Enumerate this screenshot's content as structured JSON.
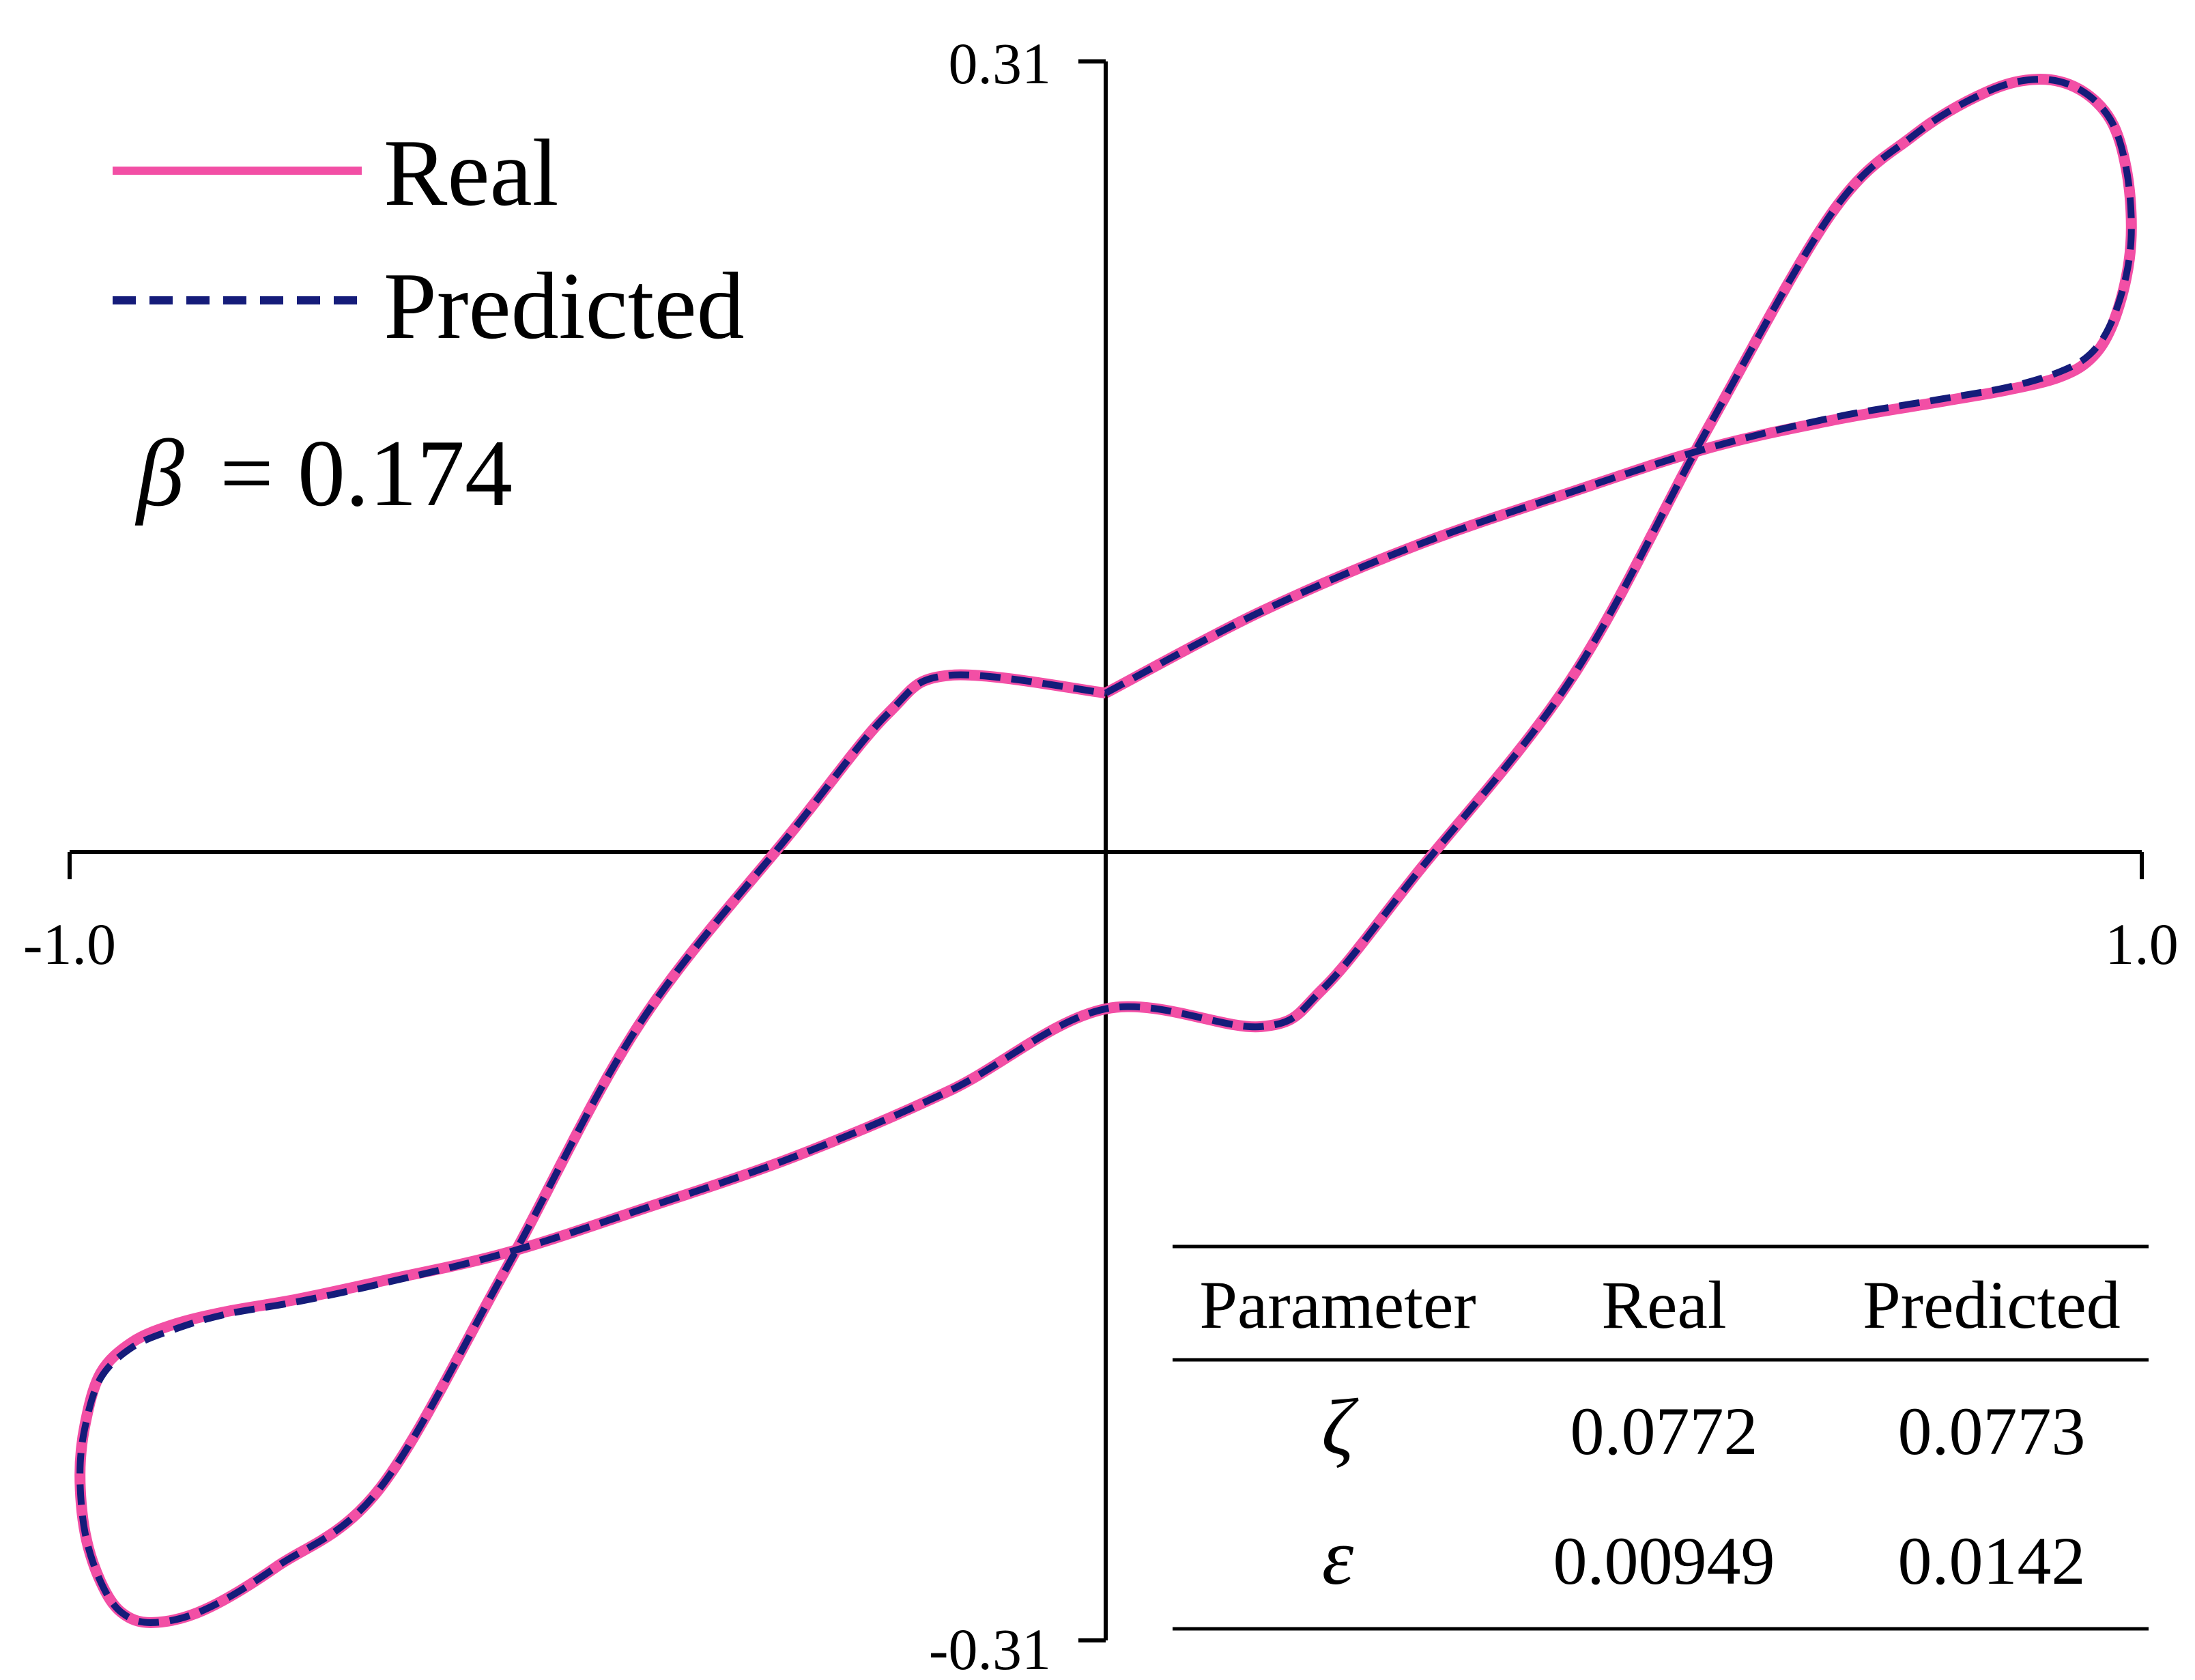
{
  "chart_data": {
    "type": "line",
    "title": "",
    "xlabel": "",
    "ylabel": "",
    "xlim": [
      -1.0,
      1.0
    ],
    "ylim": [
      -0.31,
      0.31
    ],
    "x_tick_labels": [
      "-1.0",
      "1.0"
    ],
    "y_tick_labels": [
      "0.31",
      "-0.31"
    ],
    "grid": false,
    "legend_position": "top-left",
    "annotation": {
      "symbol": "β",
      "text": "= 0.174"
    },
    "series": [
      {
        "name": "Real",
        "style": "solid",
        "color": "#f24fa5",
        "x": [
          0,
          0.15,
          0.3,
          0.45,
          0.58,
          0.7,
          0.8,
          0.87,
          0.92,
          0.95,
          0.97,
          0.985,
          0.99,
          0.985,
          0.97,
          0.94,
          0.9,
          0.85,
          0.78,
          0.7,
          0.58,
          0.45,
          0.3,
          0.21,
          0.15,
          0,
          -0.15,
          -0.3,
          -0.45,
          -0.58,
          -0.7,
          -0.78,
          -0.85,
          -0.9,
          -0.94,
          -0.97,
          -0.985,
          -0.99,
          -0.985,
          -0.97,
          -0.95,
          -0.92,
          -0.87,
          -0.8,
          -0.7,
          -0.58,
          -0.45,
          -0.3,
          -0.21,
          -0.15,
          0
        ],
        "y": [
          0.062,
          0.094,
          0.12,
          0.141,
          0.158,
          0.169,
          0.176,
          0.181,
          0.186,
          0.193,
          0.205,
          0.225,
          0.245,
          0.268,
          0.287,
          0.299,
          0.303,
          0.298,
          0.281,
          0.25,
          0.165,
          0.068,
          -0.009,
          -0.054,
          -0.069,
          -0.062,
          -0.094,
          -0.12,
          -0.141,
          -0.158,
          -0.169,
          -0.176,
          -0.181,
          -0.186,
          -0.193,
          -0.205,
          -0.225,
          -0.245,
          -0.268,
          -0.287,
          -0.299,
          -0.303,
          -0.298,
          -0.281,
          -0.25,
          -0.165,
          -0.068,
          0.009,
          0.054,
          0.069,
          0.062
        ]
      },
      {
        "name": "Predicted",
        "style": "dashed",
        "color": "#151c7a",
        "x": [
          0,
          0.15,
          0.3,
          0.45,
          0.58,
          0.7,
          0.8,
          0.87,
          0.92,
          0.95,
          0.97,
          0.985,
          0.99,
          0.985,
          0.97,
          0.94,
          0.9,
          0.85,
          0.78,
          0.7,
          0.58,
          0.45,
          0.3,
          0.21,
          0.15,
          0,
          -0.15,
          -0.3,
          -0.45,
          -0.58,
          -0.7,
          -0.78,
          -0.85,
          -0.9,
          -0.94,
          -0.97,
          -0.985,
          -0.99,
          -0.985,
          -0.97,
          -0.95,
          -0.92,
          -0.87,
          -0.8,
          -0.7,
          -0.58,
          -0.45,
          -0.3,
          -0.21,
          -0.15,
          0
        ],
        "y": [
          0.062,
          0.094,
          0.12,
          0.141,
          0.158,
          0.17,
          0.177,
          0.182,
          0.188,
          0.195,
          0.207,
          0.226,
          0.245,
          0.268,
          0.287,
          0.299,
          0.303,
          0.298,
          0.281,
          0.25,
          0.165,
          0.068,
          -0.009,
          -0.054,
          -0.069,
          -0.062,
          -0.094,
          -0.12,
          -0.141,
          -0.158,
          -0.17,
          -0.177,
          -0.182,
          -0.188,
          -0.195,
          -0.207,
          -0.226,
          -0.245,
          -0.268,
          -0.287,
          -0.299,
          -0.303,
          -0.298,
          -0.281,
          -0.25,
          -0.165,
          -0.068,
          0.009,
          0.054,
          0.069,
          0.062
        ]
      }
    ],
    "table": {
      "columns": [
        "Parameter",
        "Real",
        "Predicted"
      ],
      "rows": [
        {
          "parameter": "ζ",
          "real": "0.0772",
          "predicted": "0.0773"
        },
        {
          "parameter": "ε",
          "real": "0.00949",
          "predicted": "0.0142"
        }
      ]
    }
  }
}
